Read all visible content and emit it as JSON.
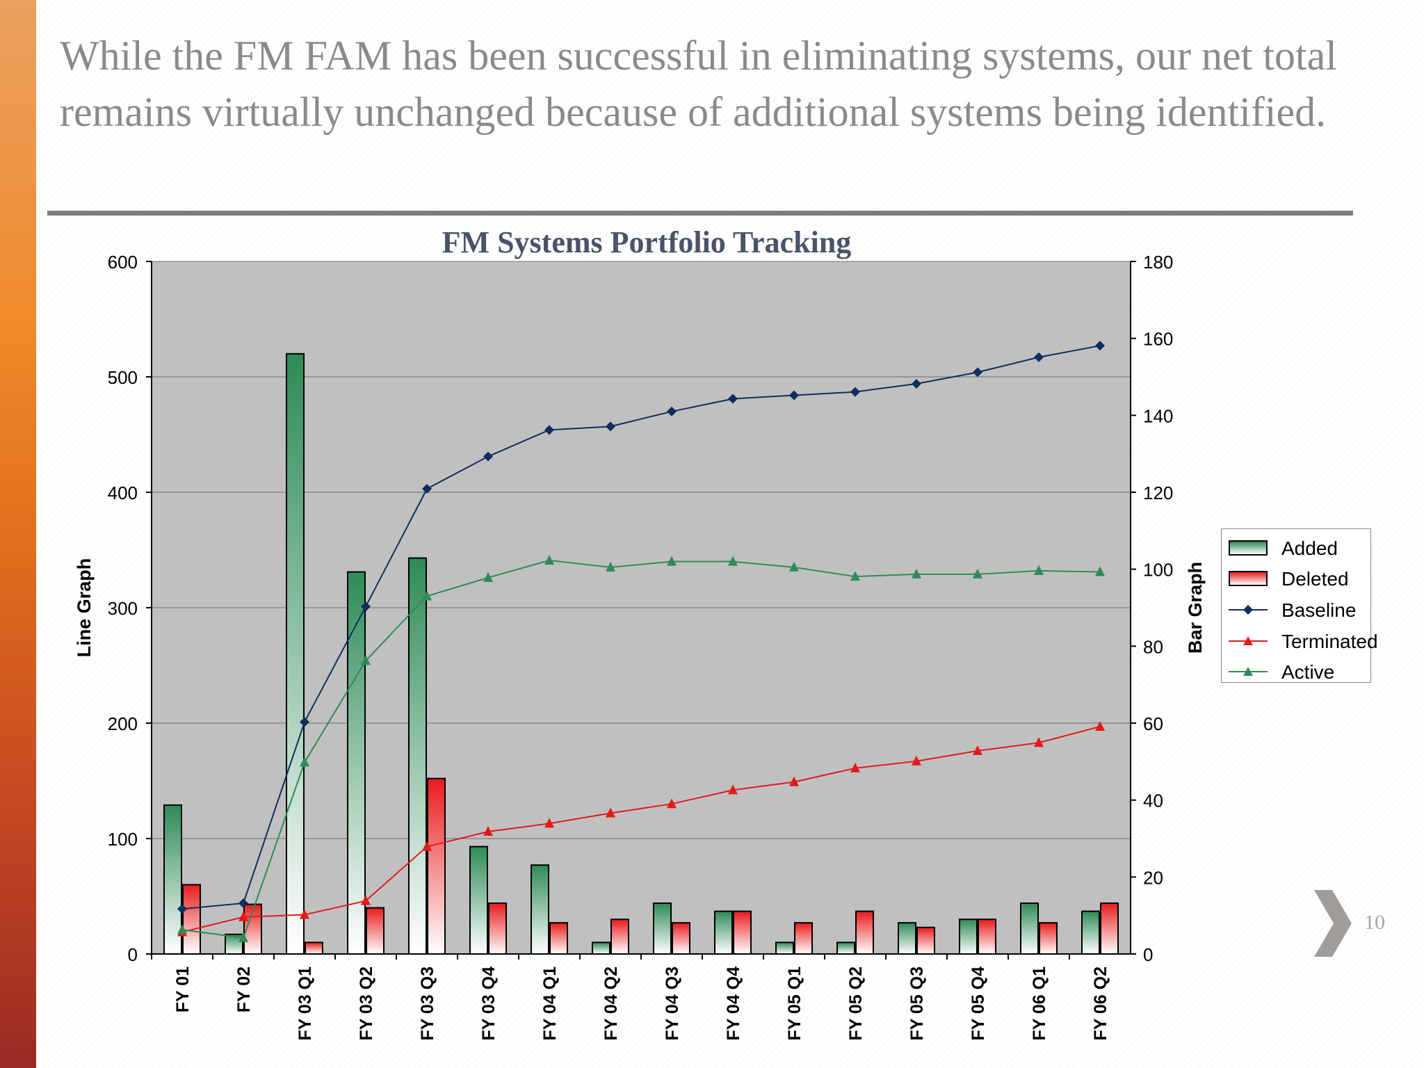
{
  "slide": {
    "title": "While the FM FAM has been successful in eliminating systems, our net total remains virtually unchanged because of additional systems being identified.",
    "page_number": "10"
  },
  "icons": {
    "next": "chevron-right-icon"
  },
  "colors": {
    "baseline": "#0f2d5e",
    "terminated": "#e21a1a",
    "active": "#2e8b57",
    "added": "#2e8b57",
    "deleted": "#e21a1a",
    "plot_bg": "#c0c0c0"
  },
  "chart_data": {
    "type": "bar",
    "title": "FM Systems Portfolio Tracking",
    "ylabel": "Line Graph",
    "y2label": "Bar Graph",
    "ylim": [
      0,
      600
    ],
    "y2lim": [
      0,
      180
    ],
    "yticks": [
      0,
      100,
      200,
      300,
      400,
      500,
      600
    ],
    "y2ticks": [
      0,
      20,
      40,
      60,
      80,
      100,
      120,
      140,
      160,
      180
    ],
    "grid": true,
    "legend_position": "right",
    "categories": [
      "FY 01",
      "FY 02",
      "FY 03 Q1",
      "FY 03 Q2",
      "FY 03 Q3",
      "FY 03 Q4",
      "FY 04 Q1",
      "FY 04 Q2",
      "FY 04 Q3",
      "FY 04 Q4",
      "FY 05 Q1",
      "FY 05 Q2",
      "FY 05 Q3",
      "FY 05 Q4",
      "FY 06 Q1",
      "FY 06 Q2"
    ],
    "series": [
      {
        "name": "Added",
        "type": "bar",
        "axis": "line_graph",
        "values": [
          129,
          17,
          520,
          331,
          343,
          93,
          77,
          10,
          44,
          37,
          10,
          10,
          27,
          30,
          44,
          37
        ]
      },
      {
        "name": "Deleted",
        "type": "bar",
        "axis": "line_graph",
        "values": [
          60,
          43,
          10,
          40,
          152,
          44,
          27,
          30,
          27,
          37,
          27,
          37,
          23,
          30,
          27,
          44
        ]
      },
      {
        "name": "Baseline",
        "type": "line",
        "marker": "diamond",
        "axis": "line_graph",
        "values": [
          39,
          44,
          201,
          301,
          403,
          431,
          454,
          457,
          470,
          481,
          484,
          487,
          494,
          504,
          517,
          527
        ]
      },
      {
        "name": "Terminated",
        "type": "line",
        "marker": "triangle",
        "axis": "line_graph",
        "values": [
          19,
          32,
          34,
          46,
          93,
          106,
          113,
          122,
          130,
          142,
          149,
          161,
          167,
          176,
          183,
          197
        ]
      },
      {
        "name": "Active",
        "type": "line",
        "marker": "triangle",
        "axis": "line_graph",
        "values": [
          21,
          14,
          166,
          254,
          310,
          326,
          341,
          335,
          340,
          340,
          335,
          327,
          329,
          329,
          332,
          331
        ]
      }
    ]
  }
}
